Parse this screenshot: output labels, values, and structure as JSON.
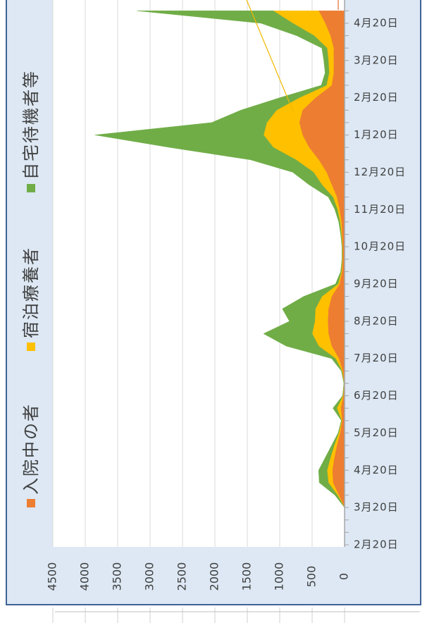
{
  "chart_data": {
    "type": "stacked_area_rotated",
    "categories": [
      "2月20日",
      null,
      null,
      "3月20日",
      null,
      null,
      "4月20日",
      null,
      null,
      "5月20日",
      null,
      null,
      "6月20日",
      null,
      null,
      "7月20日",
      null,
      null,
      "8月20日",
      null,
      null,
      "9月20日",
      null,
      null,
      "10月20日",
      null,
      null,
      "11月20日",
      null,
      null,
      "12月20日",
      null,
      null,
      "1月20日",
      null,
      null,
      "2月20日",
      null,
      null,
      "3月20日",
      null,
      null,
      "4月20日",
      null
    ],
    "series": [
      {
        "name": "入院中の者",
        "color": "#ed7d31",
        "values": [
          0,
          0,
          0,
          0,
          90,
          180,
          190,
          160,
          120,
          70,
          40,
          60,
          20,
          8,
          30,
          90,
          200,
          250,
          260,
          250,
          200,
          80,
          40,
          30,
          30,
          40,
          50,
          80,
          120,
          200,
          280,
          400,
          550,
          650,
          700,
          650,
          450,
          200,
          170,
          170,
          170,
          220,
          300,
          400
        ]
      },
      {
        "name": "宿泊療養者",
        "color": "#ffc000",
        "values": [
          0,
          0,
          0,
          0,
          20,
          70,
          80,
          60,
          40,
          20,
          5,
          60,
          5,
          2,
          10,
          50,
          200,
          250,
          200,
          200,
          150,
          20,
          10,
          5,
          5,
          10,
          20,
          30,
          60,
          150,
          200,
          350,
          550,
          600,
          500,
          400,
          250,
          80,
          70,
          80,
          100,
          250,
          500,
          700
        ]
      },
      {
        "name": "自宅待機者等",
        "color": "#70ad47",
        "values": [
          0,
          0,
          0,
          0,
          40,
          140,
          130,
          80,
          40,
          10,
          5,
          60,
          5,
          0,
          10,
          60,
          500,
          750,
          390,
          510,
          280,
          40,
          10,
          5,
          5,
          10,
          20,
          40,
          70,
          200,
          320,
          700,
          1600,
          2600,
          850,
          550,
          300,
          80,
          60,
          70,
          80,
          270,
          490,
          2100
        ]
      }
    ],
    "xlim": [
      0,
      4500
    ],
    "xticks": [
      0,
      500,
      1000,
      1500,
      2000,
      2500,
      3000,
      3500,
      4000,
      4500
    ],
    "grid": true,
    "legend": "left"
  }
}
